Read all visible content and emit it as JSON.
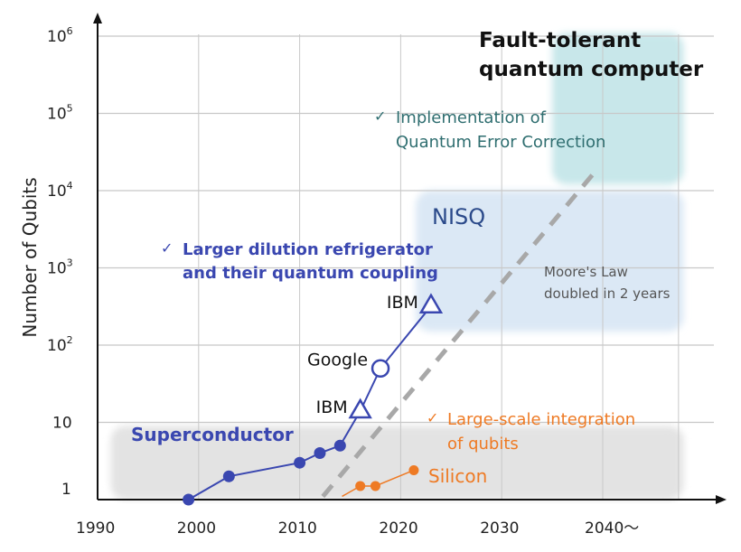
{
  "chart_data": {
    "type": "line",
    "ylabel": "Number of Qubits",
    "xlabel": "",
    "x_scale": "linear",
    "y_scale": "log",
    "xlim": [
      1990,
      2048
    ],
    "ylim": [
      1,
      1000000
    ],
    "grid": true,
    "x_ticks": [
      {
        "value": 1990,
        "label": "1990"
      },
      {
        "value": 2000,
        "label": "2000"
      },
      {
        "value": 2010,
        "label": "2010"
      },
      {
        "value": 2020,
        "label": "2020"
      },
      {
        "value": 2030,
        "label": "2030"
      },
      {
        "value": 2040,
        "label": "2040〜"
      }
    ],
    "y_ticks": [
      {
        "value": 1,
        "base": "1",
        "exp": ""
      },
      {
        "value": 10,
        "base": "10",
        "exp": ""
      },
      {
        "value": 100,
        "base": "10",
        "exp": "2"
      },
      {
        "value": 1000,
        "base": "10",
        "exp": "3"
      },
      {
        "value": 10000,
        "base": "10",
        "exp": "4"
      },
      {
        "value": 100000,
        "base": "10",
        "exp": "5"
      },
      {
        "value": 1000000,
        "base": "10",
        "exp": "6"
      }
    ],
    "regions": [
      {
        "label": "",
        "x": [
          1991.3,
          2048
        ],
        "y": [
          1,
          9
        ],
        "color": "#e3e3e3"
      },
      {
        "label": "NISQ",
        "x": [
          2021.5,
          2048
        ],
        "y": [
          150,
          10000
        ],
        "color": "#dbe8f5",
        "label_color": "#2b4a8a"
      },
      {
        "label": "Fault-tolerant quantum computer",
        "label_lines": [
          "Fault-tolerant",
          "quantum computer"
        ],
        "x": [
          2035,
          2048
        ],
        "y": [
          12000,
          1100000
        ],
        "color": "#c8e7ea",
        "label_color": "#111111"
      }
    ],
    "series": [
      {
        "name": "Superconductor",
        "color": "#3a47b0",
        "points": [
          {
            "x": 1999,
            "y": 1,
            "marker": "dot"
          },
          {
            "x": 2003,
            "y": 2,
            "marker": "dot"
          },
          {
            "x": 2010,
            "y": 3,
            "marker": "dot"
          },
          {
            "x": 2012,
            "y": 4,
            "marker": "dot"
          },
          {
            "x": 2014,
            "y": 5,
            "marker": "dot"
          },
          {
            "x": 2016,
            "y": 14,
            "marker": "triangle",
            "label": "IBM"
          },
          {
            "x": 2018,
            "y": 50,
            "marker": "circle-open",
            "label": "Google"
          },
          {
            "x": 2023,
            "y": 320,
            "marker": "triangle",
            "label": "IBM"
          }
        ]
      },
      {
        "name": "Silicon",
        "color": "#ee7a24",
        "start": {
          "x": 2014.2,
          "y": 1.1
        },
        "points": [
          {
            "x": 2016,
            "y": 1.5,
            "marker": "dot"
          },
          {
            "x": 2017.5,
            "y": 1.5,
            "marker": "dot"
          },
          {
            "x": 2021.3,
            "y": 2.4,
            "marker": "dot"
          }
        ]
      }
    ],
    "trend": {
      "label_lines": [
        "Moore's Law",
        "doubled in 2 years"
      ],
      "from": {
        "x": 2012.3,
        "y": 1.1
      },
      "to": {
        "x": 2039.6,
        "y": 20000
      },
      "color": "#a8a8a8"
    },
    "annotations": [
      {
        "check": "✓",
        "lines": [
          "Implementation of",
          "Quantum Error Correction"
        ],
        "color": "#2f6e70"
      },
      {
        "check": "✓",
        "lines": [
          "Larger dilution refrigerator",
          "and their quantum coupling"
        ],
        "color": "#3a47b0"
      },
      {
        "check": "✓",
        "lines": [
          "Large-scale integration",
          "of qubits"
        ],
        "color": "#ee7a24"
      }
    ]
  }
}
